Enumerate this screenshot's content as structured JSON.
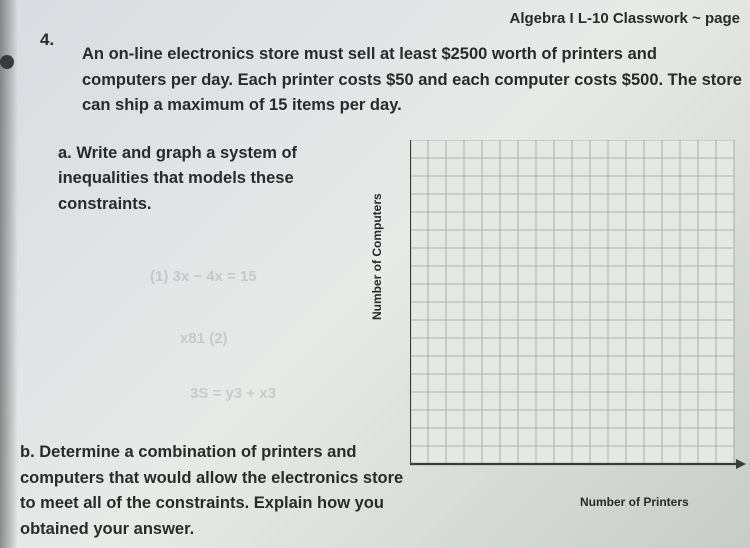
{
  "header": {
    "title": "Algebra I L-10 Classwork ~ page"
  },
  "question": {
    "number": "4.",
    "text": "An on-line electronics store must sell at least $2500 worth of printers and computers per day. Each printer costs $50 and each computer costs $500. The store can ship a maximum of 15 items per day."
  },
  "part_a": {
    "label": "a.",
    "text": "Write and graph a system of inequalities that models these constraints."
  },
  "part_b": {
    "label": "b.",
    "text": "Determine a combination of printers and computers that would allow the electronics store to meet all of the constraints. Explain how you obtained your answer."
  },
  "chart": {
    "type": "grid",
    "x_label": "Number of Printers",
    "y_label": "Number of Computers",
    "grid_cols": 18,
    "grid_rows": 18,
    "cell_size": 18,
    "grid_color": "#9aa0a0",
    "axis_color": "#3a3a3a",
    "background_color": "#e6e8e4",
    "label_fontsize": 12
  },
  "colors": {
    "page_bg_start": "#d8dce0",
    "page_bg_end": "#c8ccc8",
    "text": "#2a2a2a"
  }
}
